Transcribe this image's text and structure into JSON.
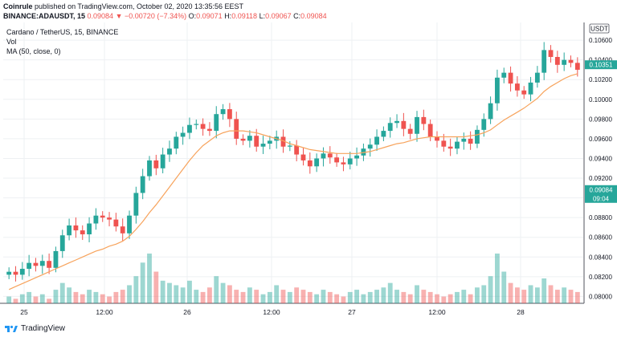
{
  "header": {
    "publisher": "Coinrule",
    "published_text": "published on TradingView.com, October 02, 2020 13:35:56 EEST",
    "symbol": "BINANCE:ADAUSDT, 15",
    "last": "0.09084",
    "change": "−0.00720 (−7.34%)",
    "o_label": "O:",
    "o": "0.09071",
    "h_label": "H:",
    "h": "0.09118",
    "l_label": "L:",
    "l": "0.09067",
    "c_label": "C:",
    "c": "0.09084"
  },
  "legend": {
    "title": "Cardano / TetherUS, 15, BINANCE",
    "vol": "Vol",
    "ma": "MA (50, close, 0)"
  },
  "colors": {
    "up": "#26a69a",
    "down": "#ef5350",
    "ma": "#f7a35c",
    "grid": "#eef0f3",
    "axis_text": "#131722"
  },
  "footer": {
    "brand": "TradingView"
  },
  "chart_data": {
    "type": "candlestick",
    "x_tick_labels": [
      "25",
      "12:00",
      "26",
      "12:00",
      "27",
      "12:00",
      "28"
    ],
    "y_tick_labels": [
      "0.08000",
      "0.08200",
      "0.08400",
      "0.08600",
      "0.08800",
      "0.09000",
      "0.09200",
      "0.09400",
      "0.09600",
      "0.09800",
      "0.10000",
      "0.10200",
      "0.10400",
      "0.10600"
    ],
    "ylim": [
      0.0793,
      0.1078
    ],
    "currency_label": "USDT",
    "price_labels": [
      {
        "value": 0.10351,
        "text": "0.10351",
        "color": "#26a69a"
      },
      {
        "value": 0.09084,
        "text": "0.09084",
        "color": "#26a69a",
        "sub": "09:04"
      }
    ],
    "series": [
      {
        "name": "ADAUSDT close (approx.)",
        "close": [
          0.0825,
          0.0822,
          0.0828,
          0.0834,
          0.0831,
          0.0836,
          0.0829,
          0.0846,
          0.0862,
          0.0872,
          0.0867,
          0.0863,
          0.0874,
          0.0882,
          0.088,
          0.0878,
          0.0871,
          0.0864,
          0.0882,
          0.0905,
          0.0922,
          0.0938,
          0.093,
          0.0944,
          0.095,
          0.0962,
          0.0966,
          0.0974,
          0.0975,
          0.097,
          0.0968,
          0.0985,
          0.099,
          0.098,
          0.096,
          0.0958,
          0.0963,
          0.0952,
          0.0955,
          0.0958,
          0.0962,
          0.0952,
          0.0953,
          0.0944,
          0.0938,
          0.0932,
          0.094,
          0.0945,
          0.0941,
          0.0936,
          0.0934,
          0.094,
          0.0943,
          0.095,
          0.0954,
          0.0962,
          0.0968,
          0.0976,
          0.0978,
          0.097,
          0.0965,
          0.0982,
          0.0975,
          0.0962,
          0.0958,
          0.0952,
          0.095,
          0.0957,
          0.096,
          0.0955,
          0.0969,
          0.098,
          0.0996,
          0.1022,
          0.1027,
          0.1016,
          0.1009,
          0.1005,
          0.1017,
          0.1027,
          0.105,
          0.1043,
          0.1035,
          0.104,
          0.1037,
          0.103
        ]
      },
      {
        "name": "MA (50, close, 0)",
        "values": [
          0.0807,
          0.081,
          0.0813,
          0.0816,
          0.0819,
          0.0822,
          0.0825,
          0.0828,
          0.0831,
          0.0834,
          0.0837,
          0.084,
          0.0843,
          0.0846,
          0.0848,
          0.0851,
          0.0853,
          0.0856,
          0.0861,
          0.0868,
          0.0876,
          0.0885,
          0.0893,
          0.0902,
          0.0911,
          0.092,
          0.0929,
          0.0938,
          0.0946,
          0.0953,
          0.0958,
          0.0963,
          0.0966,
          0.0968,
          0.0968,
          0.0968,
          0.0967,
          0.0966,
          0.0964,
          0.0962,
          0.096,
          0.0958,
          0.0955,
          0.0953,
          0.0951,
          0.0949,
          0.0948,
          0.0947,
          0.0946,
          0.0945,
          0.0945,
          0.0945,
          0.0945,
          0.0946,
          0.0947,
          0.0949,
          0.0951,
          0.0953,
          0.0955,
          0.0956,
          0.0958,
          0.096,
          0.0961,
          0.0962,
          0.0962,
          0.0962,
          0.0962,
          0.0962,
          0.0962,
          0.0963,
          0.0964,
          0.0966,
          0.0969,
          0.0974,
          0.0979,
          0.0983,
          0.0987,
          0.0991,
          0.0996,
          0.1001,
          0.1008,
          0.1013,
          0.1017,
          0.1021,
          0.1024,
          0.1026
        ]
      }
    ],
    "volume": {
      "values": [
        3,
        2,
        4,
        5,
        3,
        4,
        2,
        6,
        9,
        7,
        5,
        4,
        6,
        5,
        4,
        3,
        5,
        6,
        8,
        12,
        18,
        22,
        14,
        10,
        9,
        8,
        7,
        10,
        6,
        5,
        7,
        12,
        9,
        8,
        6,
        5,
        7,
        6,
        4,
        5,
        8,
        6,
        5,
        7,
        6,
        5,
        4,
        6,
        5,
        4,
        3,
        5,
        6,
        4,
        5,
        6,
        7,
        9,
        6,
        5,
        4,
        8,
        6,
        5,
        4,
        3,
        4,
        5,
        6,
        4,
        7,
        8,
        12,
        22,
        14,
        9,
        7,
        6,
        8,
        7,
        11,
        8,
        6,
        7,
        6,
        5
      ]
    }
  }
}
